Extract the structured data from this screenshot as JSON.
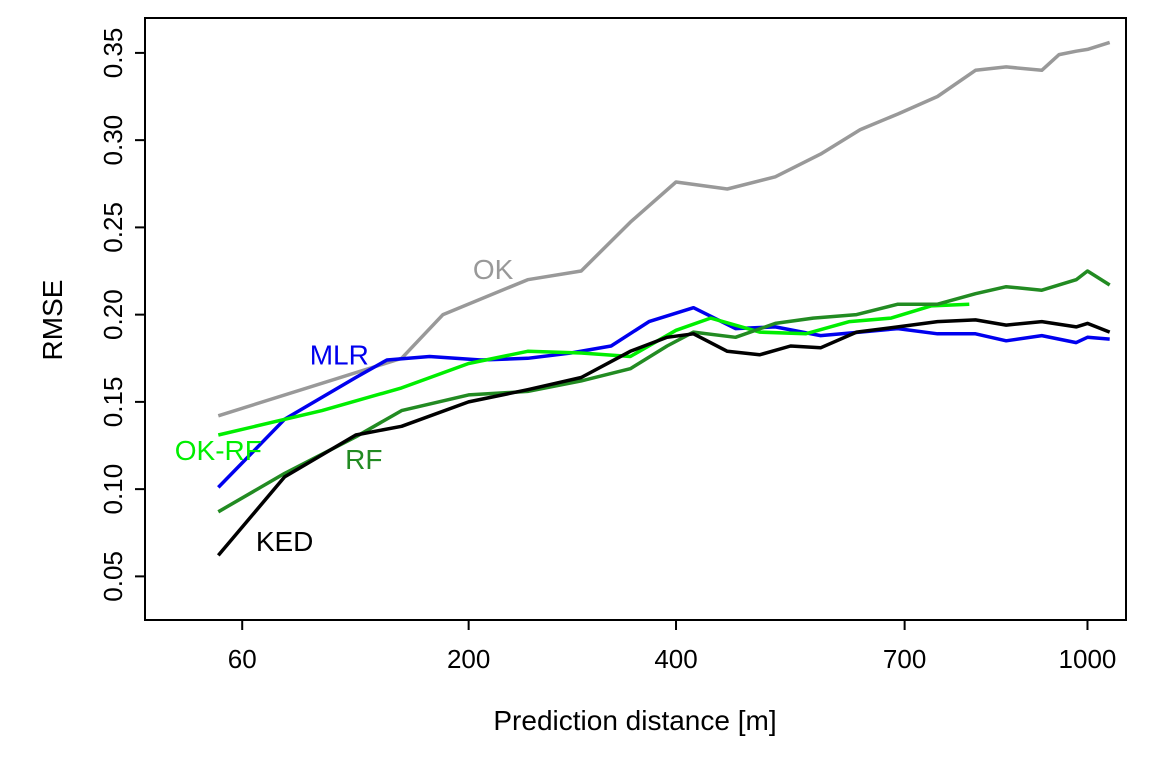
{
  "chart_data": {
    "type": "line",
    "title": "",
    "xlabel": "Prediction distance [m]",
    "ylabel": "RMSE",
    "x_scale": "sqrt",
    "xlim": [
      25,
      1070
    ],
    "ylim": [
      0.025,
      0.37
    ],
    "x_ticks": [
      60,
      200,
      400,
      700,
      1000
    ],
    "x_tick_labels": [
      "60",
      "200",
      "400",
      "700",
      "1000"
    ],
    "y_ticks": [
      0.05,
      0.1,
      0.15,
      0.2,
      0.25,
      0.3,
      0.35
    ],
    "y_tick_labels": [
      "0.05",
      "0.10",
      "0.15",
      "0.20",
      "0.25",
      "0.30",
      "0.35"
    ],
    "grid": false,
    "legend": "none",
    "series": [
      {
        "name": "OK",
        "color": "#999999",
        "x": [
          50,
          150,
          180,
          250,
          300,
          350,
          400,
          460,
          520,
          580,
          635,
          690,
          750,
          810,
          860,
          920,
          950,
          980,
          1000,
          1040
        ],
        "y": [
          0.142,
          0.175,
          0.2,
          0.22,
          0.225,
          0.253,
          0.276,
          0.272,
          0.279,
          0.292,
          0.306,
          0.315,
          0.325,
          0.34,
          0.342,
          0.34,
          0.349,
          0.351,
          0.352,
          0.356
        ]
      },
      {
        "name": "MLR",
        "color": "#0000ee",
        "x": [
          50,
          80,
          120,
          140,
          170,
          210,
          250,
          290,
          330,
          370,
          420,
          470,
          520,
          580,
          635,
          690,
          750,
          810,
          860,
          920,
          980,
          1000,
          1040
        ],
        "y": [
          0.101,
          0.14,
          0.164,
          0.174,
          0.176,
          0.174,
          0.175,
          0.178,
          0.182,
          0.196,
          0.204,
          0.192,
          0.193,
          0.188,
          0.19,
          0.192,
          0.189,
          0.189,
          0.185,
          0.188,
          0.184,
          0.187,
          0.186
        ]
      },
      {
        "name": "OK-RF",
        "color": "#00ee00",
        "x": [
          50,
          100,
          150,
          200,
          250,
          300,
          350,
          400,
          440,
          500,
          560,
          620,
          680,
          740,
          800
        ],
        "y": [
          0.131,
          0.145,
          0.158,
          0.172,
          0.179,
          0.178,
          0.176,
          0.191,
          0.198,
          0.19,
          0.189,
          0.196,
          0.198,
          0.205,
          0.206
        ]
      },
      {
        "name": "RF",
        "color": "#228b22",
        "x": [
          50,
          80,
          120,
          150,
          200,
          250,
          300,
          350,
          390,
          420,
          470,
          520,
          570,
          630,
          690,
          750,
          810,
          860,
          920,
          980,
          1000,
          1040
        ],
        "y": [
          0.087,
          0.109,
          0.13,
          0.145,
          0.154,
          0.156,
          0.162,
          0.169,
          0.182,
          0.19,
          0.187,
          0.195,
          0.198,
          0.2,
          0.206,
          0.206,
          0.212,
          0.216,
          0.214,
          0.22,
          0.225,
          0.217
        ]
      },
      {
        "name": "KED",
        "color": "#000000",
        "x": [
          50,
          80,
          120,
          150,
          200,
          250,
          300,
          350,
          390,
          420,
          460,
          500,
          540,
          580,
          630,
          690,
          750,
          810,
          860,
          920,
          980,
          1000,
          1040
        ],
        "y": [
          0.062,
          0.107,
          0.131,
          0.136,
          0.15,
          0.157,
          0.164,
          0.179,
          0.187,
          0.189,
          0.179,
          0.177,
          0.182,
          0.181,
          0.19,
          0.193,
          0.196,
          0.197,
          0.194,
          0.196,
          0.193,
          0.195,
          0.19
        ]
      }
    ]
  }
}
